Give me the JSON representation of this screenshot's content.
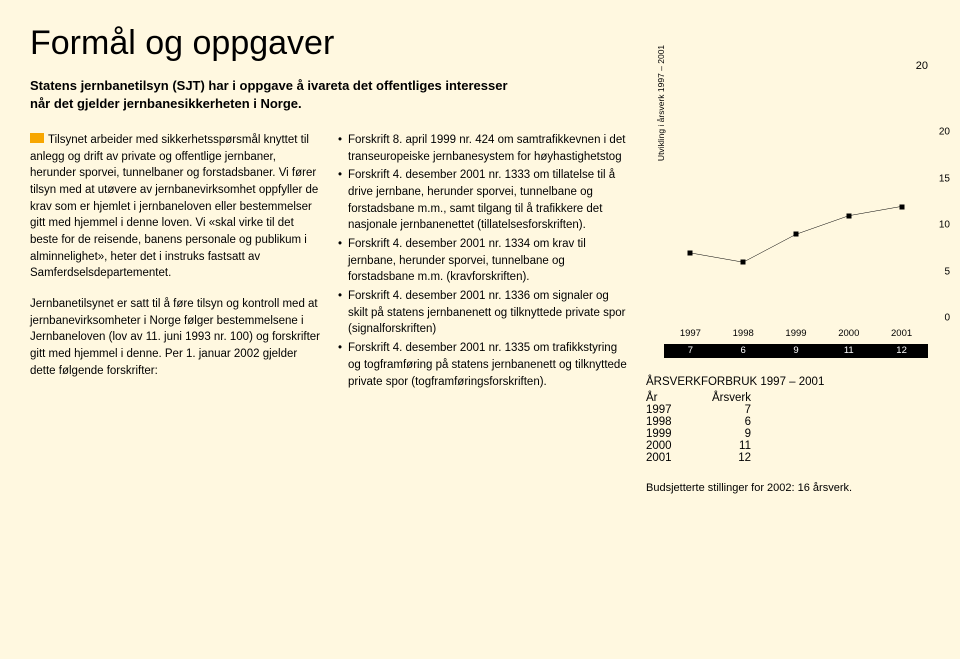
{
  "page_number": "20",
  "title": "Formål og oppgaver",
  "intro": "Statens jernbanetilsyn (SJT) har i oppgave å ivareta det offentliges interesser når det gjelder jernbanesikkerheten i Norge.",
  "col1": {
    "p1": "Tilsynet arbeider med sikkerhetsspørsmål knyttet til anlegg og drift av private og offentlige jernbaner, herunder sporvei, tunnelbaner og forstadsbaner. Vi fører tilsyn med at utøvere av jernbanevirksomhet oppfyller de krav som er hjemlet i jernbaneloven eller bestemmelser gitt med hjemmel i denne loven. Vi «skal virke til det beste for de reisende, banens personale og publikum i alminnelighet», heter det i instruks fastsatt av Samferdselsdepartementet.",
    "p2": "Jernbanetilsynet er satt til å føre tilsyn og kontroll med at jernbanevirksomheter i Norge følger bestemmelsene i Jernbaneloven (lov av 11. juni 1993 nr. 100) og forskrifter gitt med hjemmel i denne. Per 1. januar 2002 gjelder dette følgende forskrifter:"
  },
  "col2": {
    "b1": "Forskrift 8. april 1999 nr. 424 om samtrafikk­evnen i det transeuropeiske jernbanesystem for høyhastighetstog",
    "b2": "Forskrift 4. desember 2001 nr. 1333 om til­latelse til å drive jernbane, herunder sporvei, tunnelbane og forstadsbane m.m., samt tilgang til å trafikkere det nasjonale jernbane­nettet (tillatelsesforskriften).",
    "b3": "Forskrift 4. desember 2001 nr. 1334 om krav til jernbane, herunder sporvei, tunnelbane og forstadsbane m.m. (kravforskriften).",
    "b4": "Forskrift 4. desember 2001 nr. 1336 om signaler og skilt på statens jernbanenett og tilknyttede private spor (signalforskriften)",
    "b5": "Forskrift 4. desember 2001 nr. 1335 om trafikkstyring og togframføring på statens jernbanenett og tilknyttede private spor (togframføringsforskriften)."
  },
  "chart": {
    "type": "line",
    "ylabel": "Utvikling i årsverk 1997 – 2001",
    "ylim": [
      0,
      20
    ],
    "ytick_step": 5,
    "years": [
      "1997",
      "1998",
      "1999",
      "2000",
      "2001"
    ],
    "values": [
      7,
      6,
      9,
      11,
      12
    ],
    "point_color": "#000000",
    "line_color": "#000000",
    "background_color": "#fff8e0",
    "value_band_bg": "#000000",
    "value_band_fg": "#ffffff"
  },
  "table": {
    "title": "ÅRSVERKFORBRUK 1997 – 2001",
    "head_c1": "År",
    "head_c2": "Årsverk",
    "rows": [
      {
        "year": "1997",
        "val": "7"
      },
      {
        "year": "1998",
        "val": "6"
      },
      {
        "year": "1999",
        "val": "9"
      },
      {
        "year": "2000",
        "val": "11"
      },
      {
        "year": "2001",
        "val": "12"
      }
    ]
  },
  "footnote": "Budsjetterte stillinger for 2002: 16 årsverk."
}
